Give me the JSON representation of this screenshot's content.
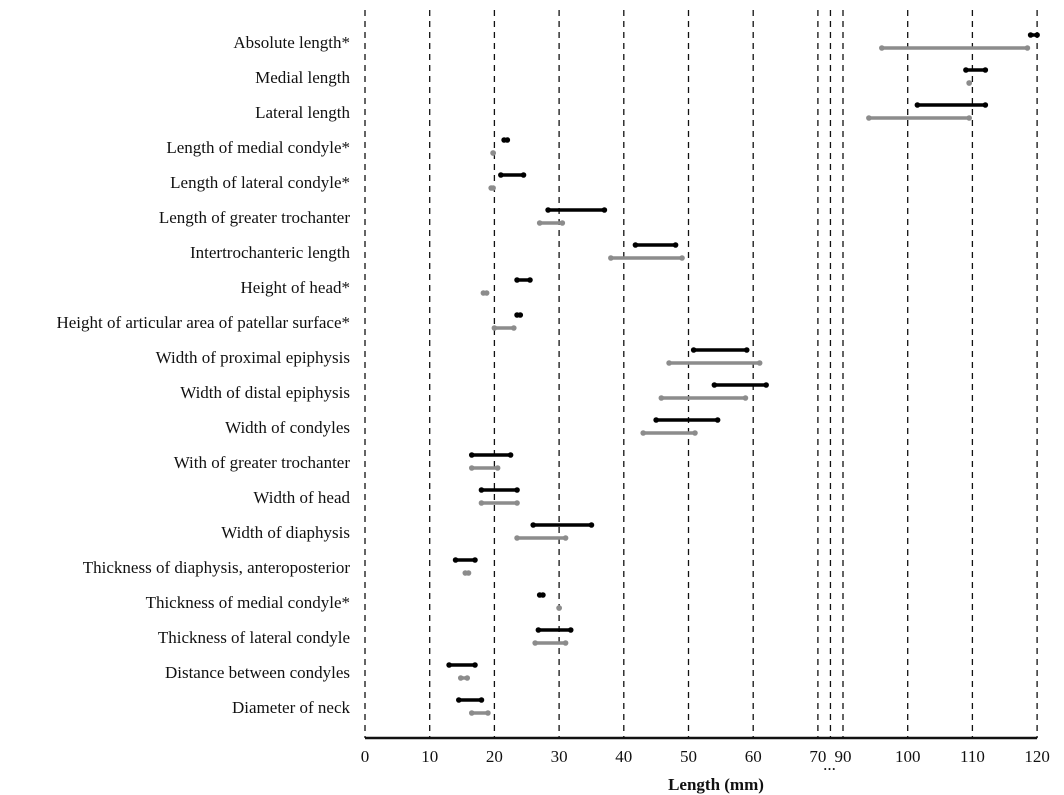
{
  "chart_data": {
    "type": "range",
    "xlabel": "Length (mm)",
    "axis": {
      "broken": true,
      "break_symbol": "...",
      "segments": [
        {
          "range": [
            0,
            70
          ],
          "ticks": [
            0,
            10,
            20,
            30,
            40,
            50,
            60,
            70
          ]
        },
        {
          "range": [
            90,
            120
          ],
          "ticks": [
            90,
            100,
            110,
            120
          ]
        }
      ]
    },
    "grid": "vertical-dashed",
    "series": [
      {
        "color": "#000000"
      },
      {
        "color": "#8c8c8c"
      }
    ],
    "categories": [
      {
        "label": "Absolute length*",
        "ranges": [
          [
            119.0,
            120.0
          ],
          [
            96.0,
            118.5
          ]
        ]
      },
      {
        "label": "Medial length",
        "ranges": [
          [
            109.0,
            112.0
          ],
          [
            109.5,
            109.5
          ]
        ]
      },
      {
        "label": "Lateral length",
        "ranges": [
          [
            101.5,
            112.0
          ],
          [
            94.0,
            109.5
          ]
        ]
      },
      {
        "label": "Length of medial condyle*",
        "ranges": [
          [
            21.5,
            22.0
          ],
          [
            19.8,
            19.8
          ]
        ]
      },
      {
        "label": "Length of lateral condyle*",
        "ranges": [
          [
            21.0,
            24.5
          ],
          [
            19.5,
            19.8
          ]
        ]
      },
      {
        "label": "Length of greater trochanter",
        "ranges": [
          [
            28.3,
            37.0
          ],
          [
            27.0,
            30.5
          ]
        ]
      },
      {
        "label": "Intertrochanteric length",
        "ranges": [
          [
            41.8,
            48.0
          ],
          [
            38.0,
            49.0
          ]
        ]
      },
      {
        "label": "Height of head*",
        "ranges": [
          [
            23.5,
            25.5
          ],
          [
            18.3,
            18.8
          ]
        ]
      },
      {
        "label": "Height of articular area of patellar surface*",
        "ranges": [
          [
            23.5,
            24.0
          ],
          [
            20.0,
            23.0
          ]
        ]
      },
      {
        "label": "Width of proximal epiphysis",
        "ranges": [
          [
            50.8,
            59.0
          ],
          [
            47.0,
            61.0
          ]
        ]
      },
      {
        "label": "Width of distal epiphysis",
        "ranges": [
          [
            54.0,
            62.0
          ],
          [
            45.8,
            58.8
          ]
        ]
      },
      {
        "label": "Width of condyles",
        "ranges": [
          [
            45.0,
            54.5
          ],
          [
            43.0,
            51.0
          ]
        ]
      },
      {
        "label": "With of greater trochanter",
        "ranges": [
          [
            16.5,
            22.5
          ],
          [
            16.5,
            20.5
          ]
        ]
      },
      {
        "label": "Width of head",
        "ranges": [
          [
            18.0,
            23.5
          ],
          [
            18.0,
            23.5
          ]
        ]
      },
      {
        "label": "Width of diaphysis",
        "ranges": [
          [
            26.0,
            35.0
          ],
          [
            23.5,
            31.0
          ]
        ]
      },
      {
        "label": "Thickness of diaphysis, anteroposterior",
        "ranges": [
          [
            14.0,
            17.0
          ],
          [
            15.5,
            16.0
          ]
        ]
      },
      {
        "label": "Thickness of medial condyle*",
        "ranges": [
          [
            27.0,
            27.5
          ],
          [
            30.0,
            30.0
          ]
        ]
      },
      {
        "label": "Thickness of lateral condyle",
        "ranges": [
          [
            26.8,
            31.8
          ],
          [
            26.3,
            31.0
          ]
        ]
      },
      {
        "label": "Distance between condyles",
        "ranges": [
          [
            13.0,
            17.0
          ],
          [
            14.8,
            15.8
          ]
        ]
      },
      {
        "label": "Diameter of neck",
        "ranges": [
          [
            14.5,
            18.0
          ],
          [
            16.5,
            19.0
          ]
        ]
      }
    ]
  }
}
